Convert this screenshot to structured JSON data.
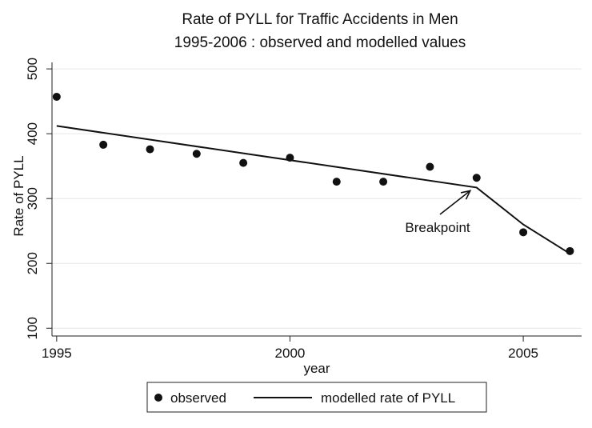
{
  "chart_data": {
    "type": "line",
    "title": "Rate of PYLL for Traffic Accidents in Men",
    "subtitle": "1995-2006 : observed and modelled values",
    "xlabel": "year",
    "ylabel": "Rate of PYLL",
    "xlim": [
      1994.9,
      2006.25
    ],
    "ylim": [
      88,
      510
    ],
    "x_ticks": [
      1995,
      2000,
      2005
    ],
    "y_ticks": [
      100,
      200,
      300,
      400,
      500
    ],
    "grid": true,
    "legend_position": "bottom",
    "series": [
      {
        "name": "observed",
        "kind": "scatter",
        "x": [
          1995,
          1996,
          1997,
          1998,
          1999,
          2000,
          2001,
          2002,
          2003,
          2004,
          2005,
          2006
        ],
        "values": [
          457,
          383,
          376,
          369,
          355,
          363,
          326,
          326,
          349,
          332,
          248,
          219
        ]
      },
      {
        "name": "modelled rate of PYLL",
        "kind": "line",
        "x": [
          1995,
          2004,
          2005,
          2006
        ],
        "values": [
          412,
          317,
          260,
          215
        ]
      }
    ],
    "annotations": [
      {
        "text": "Breakpoint",
        "x": 2004,
        "y": 317
      }
    ]
  }
}
